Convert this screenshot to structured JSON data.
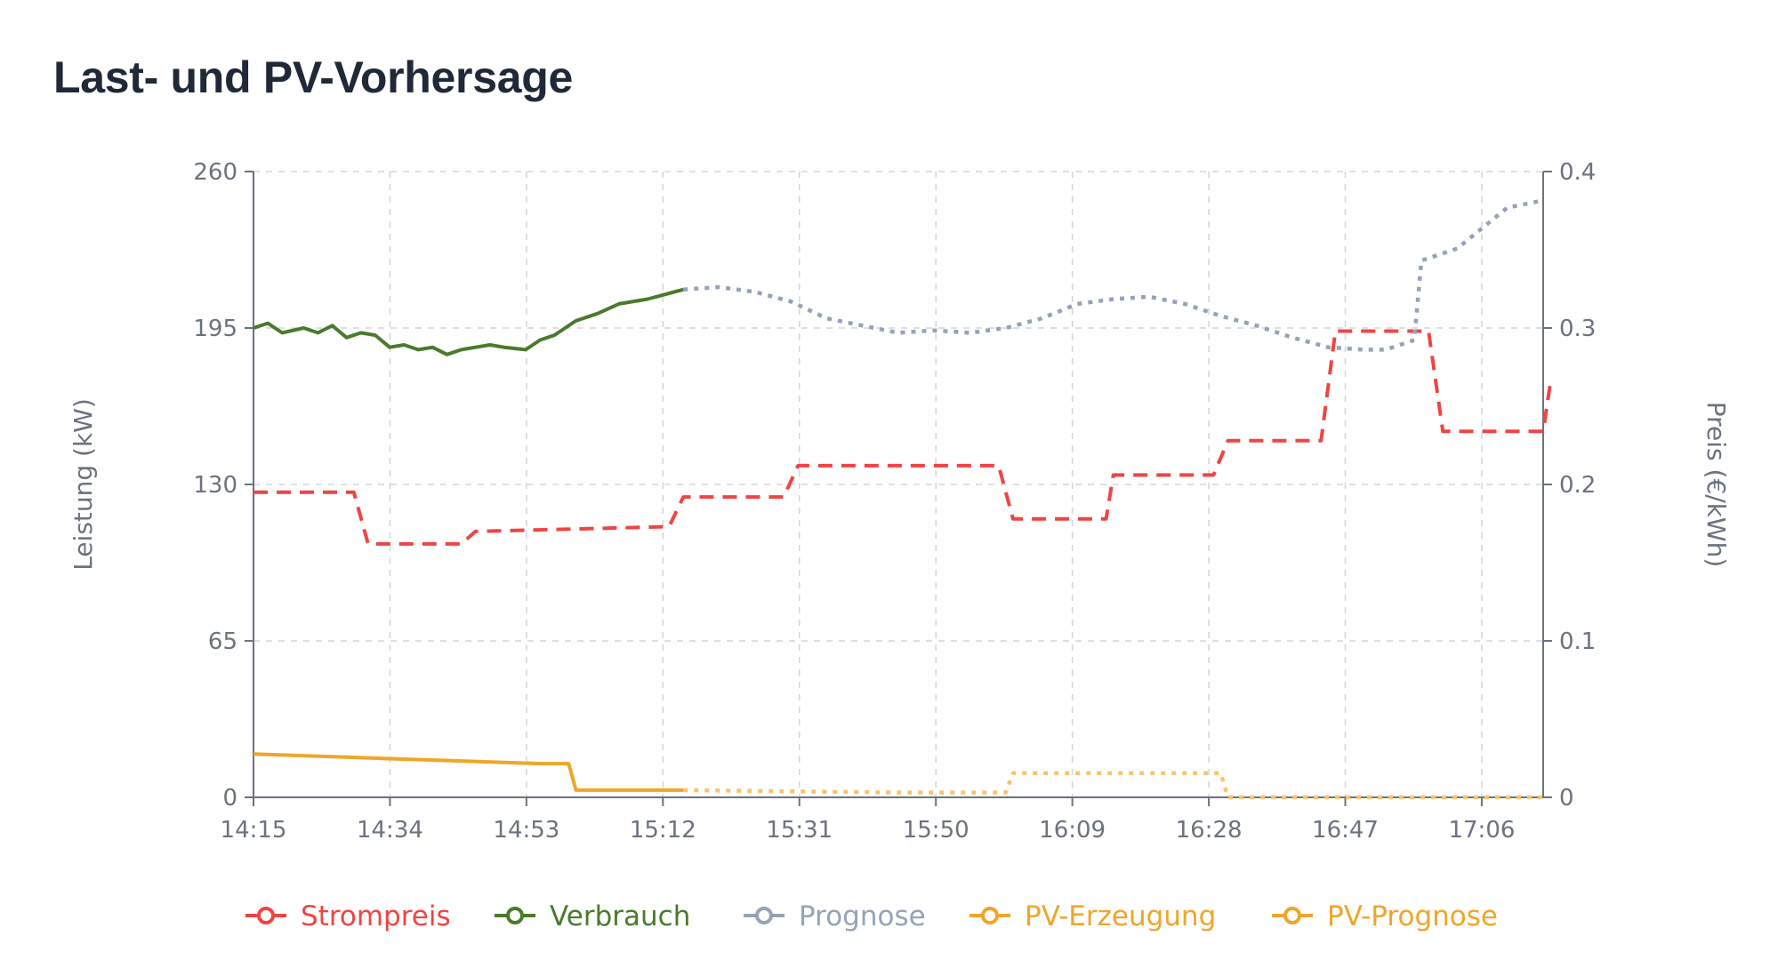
{
  "card": {
    "title": "Last- und PV-Vorhersage"
  },
  "chart_data": {
    "type": "line",
    "title": "Last- und PV-Vorhersage",
    "xlabel": "",
    "ylabel_left": "Leistung (kW)",
    "ylabel_right": "Preis (€/kWh)",
    "x_ticks": [
      "14:15",
      "14:34",
      "14:53",
      "15:12",
      "15:31",
      "15:50",
      "16:09",
      "16:28",
      "16:47",
      "17:06"
    ],
    "x_range_min": [
      0,
      180
    ],
    "y_left_ticks": [
      0,
      65,
      130,
      195,
      260
    ],
    "y_left_range": [
      0,
      260
    ],
    "y_right_ticks": [
      "0",
      "0.1",
      "0.2",
      "0.3",
      "0.4"
    ],
    "y_right_range": [
      0,
      0.4
    ],
    "grid": true,
    "colors": {
      "price": "#ef4444",
      "consumption": "#4a7a2c",
      "forecast": "#94a3b8",
      "pv": "#f0a52a",
      "axis": "#6b7280",
      "grid": "#d1d5db"
    },
    "series": [
      {
        "name": "Strompreis",
        "axis": "right",
        "style": "dashed",
        "color": "#ef4444",
        "points": [
          [
            0,
            0.195
          ],
          [
            14,
            0.195
          ],
          [
            16,
            0.162
          ],
          [
            29,
            0.162
          ],
          [
            31,
            0.17
          ],
          [
            58,
            0.173
          ],
          [
            60,
            0.192
          ],
          [
            74,
            0.192
          ],
          [
            76,
            0.212
          ],
          [
            104,
            0.212
          ],
          [
            106,
            0.178
          ],
          [
            119,
            0.178
          ],
          [
            120,
            0.206
          ],
          [
            134,
            0.206
          ],
          [
            136,
            0.228
          ],
          [
            149,
            0.228
          ],
          [
            151,
            0.298
          ],
          [
            164,
            0.298
          ],
          [
            166,
            0.234
          ],
          [
            180,
            0.234
          ],
          [
            181,
            0.265
          ]
        ]
      },
      {
        "name": "Verbrauch",
        "axis": "left",
        "style": "solid",
        "color": "#4a7a2c",
        "points": [
          [
            0,
            195
          ],
          [
            2,
            197
          ],
          [
            4,
            193
          ],
          [
            7,
            195
          ],
          [
            9,
            193
          ],
          [
            11,
            196
          ],
          [
            13,
            191
          ],
          [
            15,
            193
          ],
          [
            17,
            192
          ],
          [
            19,
            187
          ],
          [
            21,
            188
          ],
          [
            23,
            186
          ],
          [
            25,
            187
          ],
          [
            27,
            184
          ],
          [
            29,
            186
          ],
          [
            31,
            187
          ],
          [
            33,
            188
          ],
          [
            35,
            187
          ],
          [
            38,
            186
          ],
          [
            40,
            190
          ],
          [
            42,
            192
          ],
          [
            45,
            198
          ],
          [
            48,
            201
          ],
          [
            51,
            205
          ],
          [
            55,
            207
          ],
          [
            60,
            211
          ]
        ]
      },
      {
        "name": "Prognose",
        "axis": "left",
        "style": "dotted",
        "color": "#94a3b8",
        "points": [
          [
            60,
            211
          ],
          [
            65,
            212
          ],
          [
            70,
            210
          ],
          [
            75,
            206
          ],
          [
            80,
            199
          ],
          [
            85,
            196
          ],
          [
            90,
            193
          ],
          [
            95,
            194
          ],
          [
            100,
            193
          ],
          [
            105,
            195
          ],
          [
            110,
            199
          ],
          [
            115,
            205
          ],
          [
            120,
            207
          ],
          [
            125,
            208
          ],
          [
            130,
            205
          ],
          [
            135,
            200
          ],
          [
            140,
            196
          ],
          [
            145,
            191
          ],
          [
            150,
            187
          ],
          [
            155,
            186
          ],
          [
            158,
            186
          ],
          [
            162,
            190
          ],
          [
            163,
            223
          ],
          [
            168,
            228
          ],
          [
            175,
            245
          ],
          [
            180,
            248
          ]
        ]
      },
      {
        "name": "PV-Erzeugung",
        "axis": "left",
        "style": "solid",
        "color": "#f0a52a",
        "points": [
          [
            0,
            18
          ],
          [
            10,
            17
          ],
          [
            20,
            16
          ],
          [
            30,
            15
          ],
          [
            40,
            14
          ],
          [
            44,
            14
          ],
          [
            45,
            3
          ],
          [
            50,
            3
          ],
          [
            60,
            3
          ]
        ]
      },
      {
        "name": "PV-Prognose",
        "axis": "left",
        "style": "dotted",
        "color": "#f0a52a",
        "points": [
          [
            60,
            3
          ],
          [
            90,
            2
          ],
          [
            105,
            2
          ],
          [
            106,
            10
          ],
          [
            135,
            10
          ],
          [
            136,
            0
          ],
          [
            180,
            0
          ]
        ]
      }
    ],
    "legend": [
      {
        "label": "Strompreis",
        "color": "#ef4444"
      },
      {
        "label": "Verbrauch",
        "color": "#4a7a2c"
      },
      {
        "label": "Prognose",
        "color": "#94a3b8"
      },
      {
        "label": "PV-Erzeugung",
        "color": "#f0a52a"
      },
      {
        "label": "PV-Prognose",
        "color": "#f0a52a"
      }
    ],
    "legend_position": "bottom"
  }
}
